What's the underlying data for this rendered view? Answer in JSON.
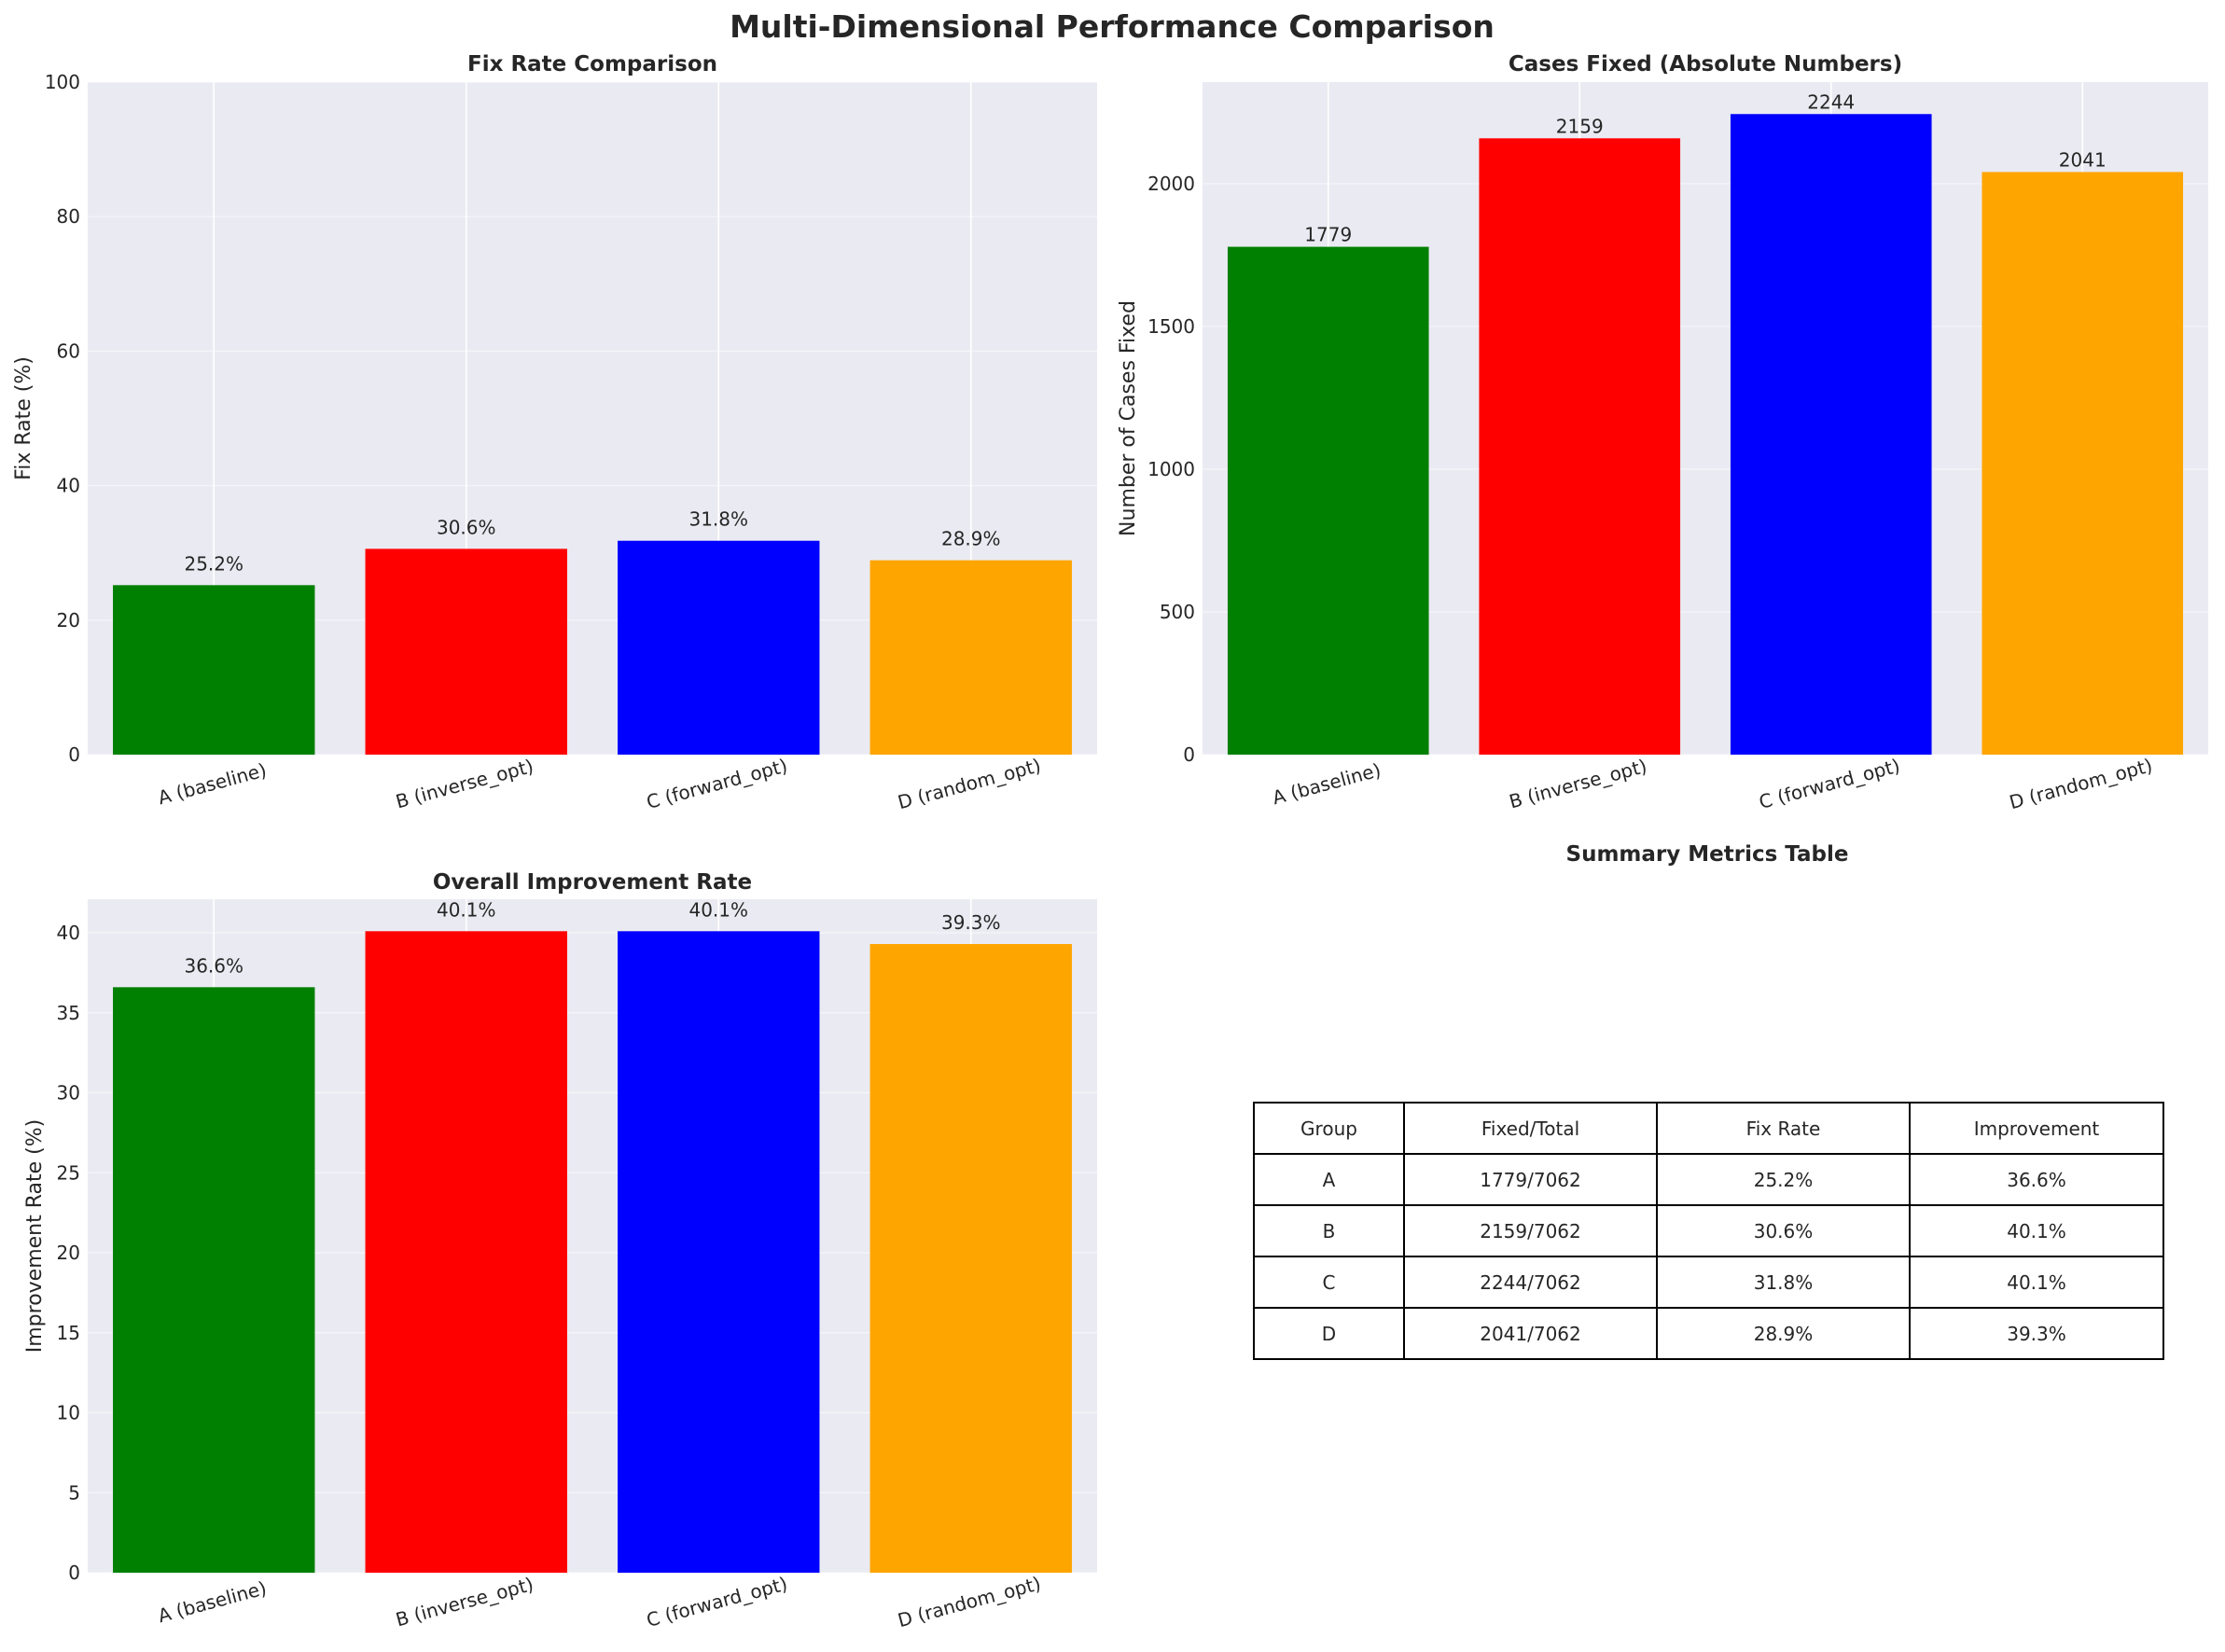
{
  "figure": {
    "title": "Multi-Dimensional Performance Comparison"
  },
  "chart_data": [
    {
      "type": "bar",
      "title": "Fix Rate Comparison",
      "xlabel": "",
      "ylabel": "Fix Rate (%)",
      "categories": [
        "A (baseline)",
        "B (inverse_opt)",
        "C (forward_opt)",
        "D (random_opt)"
      ],
      "values": [
        25.2,
        30.6,
        31.8,
        28.9
      ],
      "labels": [
        "25.2%",
        "30.6%",
        "31.8%",
        "28.9%"
      ],
      "colors": [
        "#008000",
        "#ff0000",
        "#0000ff",
        "#ffa500"
      ],
      "ylim": [
        0,
        100
      ],
      "yticks": [
        0,
        20,
        40,
        60,
        80,
        100
      ],
      "grid": true
    },
    {
      "type": "bar",
      "title": "Cases Fixed (Absolute Numbers)",
      "xlabel": "",
      "ylabel": "Number of Cases Fixed",
      "categories": [
        "A (baseline)",
        "B (inverse_opt)",
        "C (forward_opt)",
        "D (random_opt)"
      ],
      "values": [
        1779,
        2159,
        2244,
        2041
      ],
      "labels": [
        "1779",
        "2159",
        "2244",
        "2041"
      ],
      "colors": [
        "#008000",
        "#ff0000",
        "#0000ff",
        "#ffa500"
      ],
      "ylim": [
        0,
        2356
      ],
      "yticks": [
        0,
        500,
        1000,
        1500,
        2000
      ],
      "grid": true
    },
    {
      "type": "bar",
      "title": "Overall Improvement Rate",
      "xlabel": "",
      "ylabel": "Improvement Rate (%)",
      "categories": [
        "A (baseline)",
        "B (inverse_opt)",
        "C (forward_opt)",
        "D (random_opt)"
      ],
      "values": [
        36.6,
        40.1,
        40.1,
        39.3
      ],
      "labels": [
        "36.6%",
        "40.1%",
        "40.1%",
        "39.3%"
      ],
      "colors": [
        "#008000",
        "#ff0000",
        "#0000ff",
        "#ffa500"
      ],
      "ylim": [
        0,
        42.1
      ],
      "yticks": [
        0,
        5,
        10,
        15,
        20,
        25,
        30,
        35,
        40
      ],
      "grid": true
    },
    {
      "type": "table",
      "title": "Summary Metrics Table",
      "columns": [
        "Group",
        "Fixed/Total",
        "Fix Rate",
        "Improvement"
      ],
      "rows": [
        [
          "A",
          "1779/7062",
          "25.2%",
          "36.6%"
        ],
        [
          "B",
          "2159/7062",
          "30.6%",
          "40.1%"
        ],
        [
          "C",
          "2244/7062",
          "31.8%",
          "40.1%"
        ],
        [
          "D",
          "2041/7062",
          "28.9%",
          "39.3%"
        ]
      ]
    }
  ]
}
